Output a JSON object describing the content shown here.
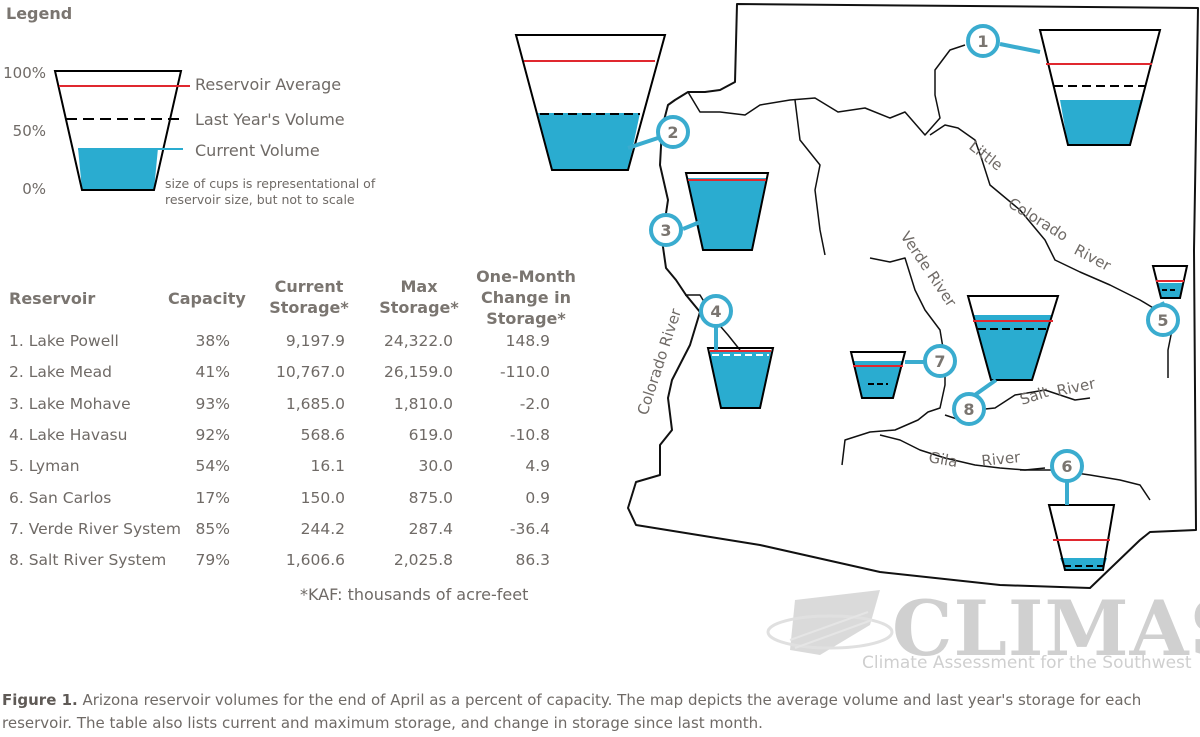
{
  "legend": {
    "title": "Legend",
    "pct_100": "100%",
    "pct_50": "50%",
    "pct_0": "0%",
    "reservoir_average": "Reservoir Average",
    "last_year": "Last Year's Volume",
    "current": "Current Volume",
    "note": "size of cups is representational of reservoir size, but not to scale"
  },
  "table": {
    "headers": {
      "reservoir": "Reservoir",
      "capacity": "Capacity",
      "current_storage": "Current Storage*",
      "max_storage": "Max Storage*",
      "change": "One-Month Change in Storage*"
    },
    "rows": [
      {
        "name": "1. Lake Powell",
        "capacity": "38%",
        "current": "9,197.9",
        "max": "24,322.0",
        "change": "148.9"
      },
      {
        "name": "2. Lake Mead",
        "capacity": "41%",
        "current": "10,767.0",
        "max": "26,159.0",
        "change": "-110.0"
      },
      {
        "name": "3. Lake Mohave",
        "capacity": "93%",
        "current": "1,685.0",
        "max": "1,810.0",
        "change": "-2.0"
      },
      {
        "name": "4. Lake Havasu",
        "capacity": "92%",
        "current": "568.6",
        "max": "619.0",
        "change": "-10.8"
      },
      {
        "name": "5. Lyman",
        "capacity": "54%",
        "current": "16.1",
        "max": "30.0",
        "change": "4.9"
      },
      {
        "name": "6. San Carlos",
        "capacity": "17%",
        "current": "150.0",
        "max": "875.0",
        "change": "0.9"
      },
      {
        "name": "7. Verde River System",
        "capacity": "85%",
        "current": "244.2",
        "max": "287.4",
        "change": "-36.4"
      },
      {
        "name": "8. Salt River System",
        "capacity": "79%",
        "current": "1,606.6",
        "max": "2,025.8",
        "change": "86.3"
      }
    ],
    "footnote": "*KAF: thousands of acre-feet"
  },
  "map": {
    "rivers": {
      "little_colorado": [
        "Little",
        "Colorado",
        "River"
      ],
      "verde": "Verde River",
      "colorado": "Colorado River",
      "salt": [
        "Salt",
        "River"
      ],
      "gila": [
        "Gila",
        "River"
      ]
    },
    "markers": [
      "1",
      "2",
      "3",
      "4",
      "5",
      "6",
      "7",
      "8"
    ]
  },
  "logo": {
    "name": "CLIMAS",
    "subtitle": "Climate Assessment for the Southwest"
  },
  "caption": {
    "label": "Figure 1.",
    "text": " Arizona reservoir volumes for the end of April as a percent of capacity. The map depicts the average volume and last year's storage for each reservoir. The table also lists current and maximum storage, and change in storage since last month."
  },
  "colors": {
    "water": "#2aacd0",
    "average": "#e0282f",
    "outline": "#000000",
    "text": "#6f6a66",
    "marker": "#3aaccf"
  }
}
